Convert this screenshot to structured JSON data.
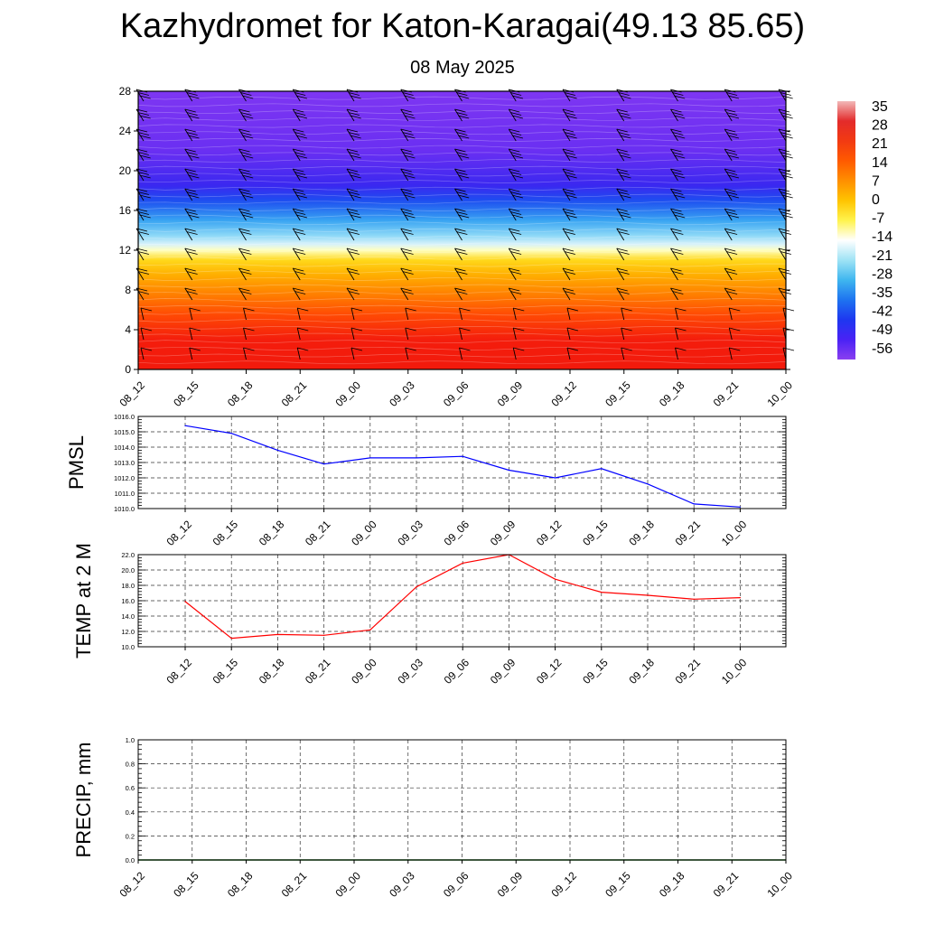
{
  "title": "Kazhydromet for Katon-Karagai(49.13 85.65)",
  "subtitle": "08 May 2025",
  "chart_data": [
    {
      "type": "heatmap",
      "name": "cross-section",
      "x_ticks": [
        "08_12",
        "08_15",
        "08_18",
        "08_21",
        "09_00",
        "09_03",
        "09_06",
        "09_09",
        "09_12",
        "09_15",
        "09_18",
        "09_21",
        "10_00"
      ],
      "y_ticks": [
        0,
        4,
        8,
        12,
        16,
        20,
        24,
        28
      ],
      "ylim": [
        0,
        28
      ],
      "colorbar": {
        "labels": [
          "35",
          "28",
          "21",
          "14",
          "7",
          "0",
          "-7",
          "-14",
          "-21",
          "-28",
          "-35",
          "-42",
          "-49",
          "-56"
        ],
        "colors": [
          "#f2b8b8",
          "#e32b2b",
          "#f23a12",
          "#ff5a00",
          "#ff8f00",
          "#ffc400",
          "#fff34d",
          "#ffffff",
          "#9fe3f5",
          "#3fb6ef",
          "#1e73f0",
          "#1e37f0",
          "#4a22f5",
          "#8a3ff0"
        ]
      },
      "levels": [
        {
          "height": 0,
          "color": "#f21a0c"
        },
        {
          "height": 3,
          "color": "#f41d0c"
        },
        {
          "height": 5.5,
          "color": "#ff4a04"
        },
        {
          "height": 7.5,
          "color": "#ff7e00"
        },
        {
          "height": 9.5,
          "color": "#ffae00"
        },
        {
          "height": 11,
          "color": "#ffd81a"
        },
        {
          "height": 12,
          "color": "#ffffc0"
        },
        {
          "height": 12.6,
          "color": "#d8f2fa"
        },
        {
          "height": 13.5,
          "color": "#8cd8f7"
        },
        {
          "height": 15,
          "color": "#38a4f2"
        },
        {
          "height": 17,
          "color": "#1e4ef0"
        },
        {
          "height": 18.5,
          "color": "#3a28f0"
        },
        {
          "height": 22,
          "color": "#6a2ff2"
        },
        {
          "height": 28,
          "color": "#7e36f2"
        }
      ],
      "grid": false
    },
    {
      "type": "line",
      "ylabel": "PMSL",
      "categories": [
        "08_12",
        "08_15",
        "08_18",
        "08_21",
        "09_00",
        "09_03",
        "09_06",
        "09_09",
        "09_12",
        "09_15",
        "09_18",
        "09_21",
        "10_00"
      ],
      "values": [
        1015.4,
        1014.9,
        1013.8,
        1012.9,
        1013.3,
        1013.3,
        1013.4,
        1012.5,
        1012.0,
        1012.6,
        1011.6,
        1010.3,
        1010.1
      ],
      "ylim": [
        1010,
        1016
      ],
      "y_ticks": [
        "1010.0",
        "1011.0",
        "1012.0",
        "1013.0",
        "1014.0",
        "1015.0",
        "1016.0"
      ],
      "color": "#0000ff",
      "grid": true
    },
    {
      "type": "line",
      "ylabel": "TEMP at 2 M",
      "categories": [
        "08_12",
        "08_15",
        "08_18",
        "08_21",
        "09_00",
        "09_03",
        "09_06",
        "09_09",
        "09_12",
        "09_15",
        "09_18",
        "09_21",
        "10_00"
      ],
      "values": [
        15.9,
        11.1,
        11.6,
        11.5,
        12.2,
        17.8,
        20.9,
        22.0,
        18.8,
        17.1,
        16.7,
        16.2,
        16.4
      ],
      "ylim": [
        10,
        22
      ],
      "y_ticks": [
        "10.0",
        "12.0",
        "14.0",
        "16.0",
        "18.0",
        "20.0",
        "22.0"
      ],
      "color": "#ff0000",
      "grid": true
    },
    {
      "type": "bar",
      "ylabel": "PRECIP, mm",
      "categories": [
        "08_12",
        "08_15",
        "08_18",
        "08_21",
        "09_00",
        "09_03",
        "09_06",
        "09_09",
        "09_12",
        "09_15",
        "09_18",
        "09_21",
        "10_00"
      ],
      "values": [
        0,
        0,
        0,
        0,
        0,
        0,
        0,
        0,
        0,
        0,
        0,
        0,
        0
      ],
      "ylim": [
        0,
        1
      ],
      "y_ticks": [
        "0.0",
        "0.2",
        "0.4",
        "0.6",
        "0.8",
        "1.0"
      ],
      "color": "#006400",
      "grid": true
    }
  ]
}
